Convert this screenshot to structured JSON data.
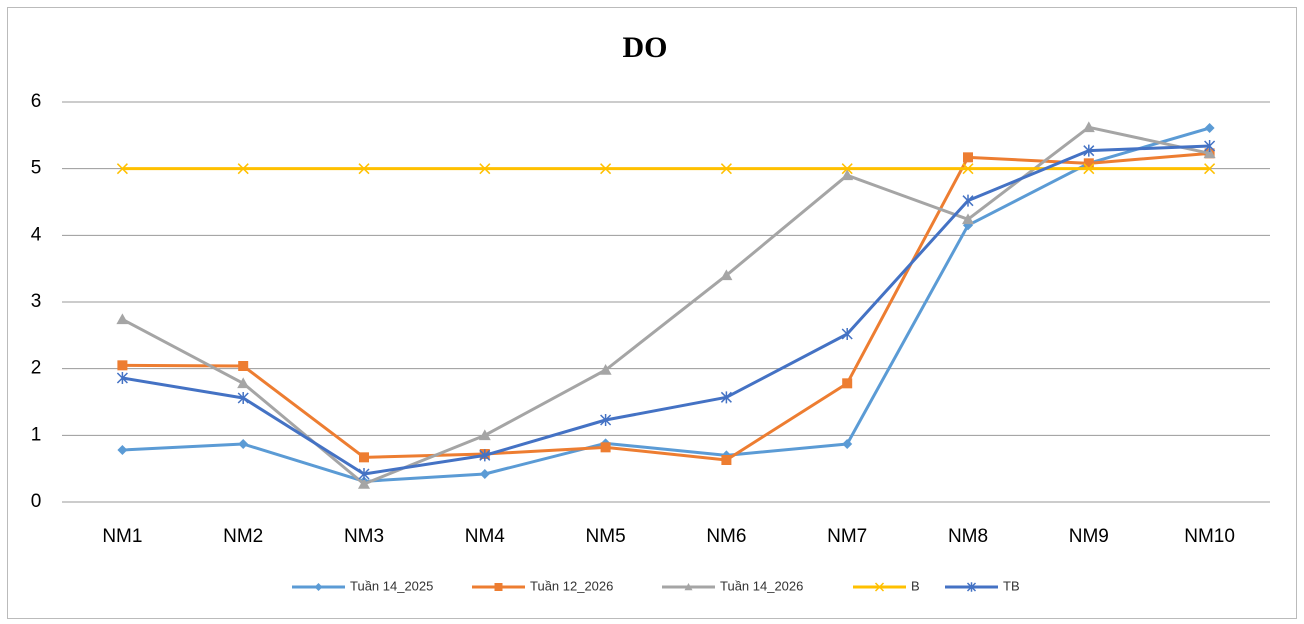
{
  "chart_data": {
    "type": "line",
    "title": "DO",
    "categories": [
      "NM1",
      "NM2",
      "NM3",
      "NM4",
      "NM5",
      "NM6",
      "NM7",
      "NM8",
      "NM9",
      "NM10"
    ],
    "series": [
      {
        "name": "Tuần 14_2025",
        "color": "#5B9BD5",
        "marker": "diamond",
        "values": [
          0.78,
          0.87,
          0.31,
          0.42,
          0.88,
          0.7,
          0.87,
          4.15,
          5.08,
          5.61
        ]
      },
      {
        "name": "Tuần 12_2026",
        "color": "#ED7D31",
        "marker": "square",
        "values": [
          2.05,
          2.04,
          0.67,
          0.72,
          0.82,
          0.63,
          1.78,
          5.17,
          5.08,
          5.23
        ]
      },
      {
        "name": "Tuần 14_2026",
        "color": "#A5A5A5",
        "marker": "triangle",
        "values": [
          2.74,
          1.78,
          0.27,
          1.0,
          1.98,
          3.4,
          4.9,
          4.24,
          5.62,
          5.23
        ]
      },
      {
        "name": "B",
        "color": "#FFC000",
        "marker": "x",
        "values": [
          5,
          5,
          5,
          5,
          5,
          5,
          5,
          5,
          5,
          5
        ]
      },
      {
        "name": "TB",
        "color": "#4472C4",
        "marker": "star",
        "values": [
          1.86,
          1.56,
          0.42,
          0.7,
          1.23,
          1.57,
          2.52,
          4.52,
          5.27,
          5.34
        ]
      }
    ],
    "ylim": [
      0,
      6
    ],
    "yticks": [
      0,
      1,
      2,
      3,
      4,
      5,
      6
    ],
    "grid": true,
    "legend": "bottom"
  }
}
